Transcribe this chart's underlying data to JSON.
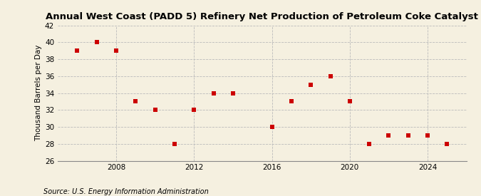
{
  "title": "Annual West Coast (PADD 5) Refinery Net Production of Petroleum Coke Catalyst",
  "ylabel": "Thousand Barrels per Day",
  "source": "Source: U.S. Energy Information Administration",
  "years": [
    2006,
    2007,
    2008,
    2009,
    2010,
    2011,
    2012,
    2013,
    2014,
    2016,
    2017,
    2018,
    2019,
    2020,
    2021,
    2022,
    2023,
    2024,
    2025
  ],
  "values": [
    39.0,
    40.0,
    39.0,
    33.0,
    32.0,
    28.0,
    32.0,
    34.0,
    34.0,
    30.0,
    33.0,
    35.0,
    36.0,
    33.0,
    28.0,
    29.0,
    29.0,
    29.0,
    28.0
  ],
  "xlim": [
    2005.0,
    2026.0
  ],
  "ylim": [
    26,
    42
  ],
  "yticks": [
    26,
    28,
    30,
    32,
    34,
    36,
    38,
    40,
    42
  ],
  "xticks": [
    2008,
    2012,
    2016,
    2020,
    2024
  ],
  "marker_color": "#CC0000",
  "marker_size": 18,
  "bg_color": "#F5F0E0",
  "grid_color": "#BBBBBB",
  "title_fontsize": 9.5,
  "label_fontsize": 7.5,
  "tick_fontsize": 7.5,
  "source_fontsize": 7
}
